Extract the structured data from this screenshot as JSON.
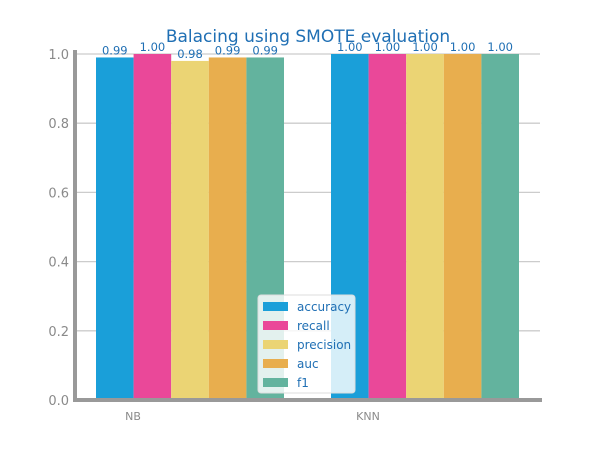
{
  "chart_data": {
    "type": "bar",
    "title": "Balacing using SMOTE evaluation",
    "xlabel": "",
    "ylabel": "",
    "categories": [
      "NB",
      "KNN"
    ],
    "series": [
      {
        "name": "accuracy",
        "color": "#1a9fd9",
        "values": [
          0.99,
          1.0
        ]
      },
      {
        "name": "recall",
        "color": "#ea4899",
        "values": [
          1.0,
          1.0
        ]
      },
      {
        "name": "precision",
        "color": "#ebd474",
        "values": [
          0.98,
          1.0
        ]
      },
      {
        "name": "auc",
        "color": "#e8ae4e",
        "values": [
          0.99,
          1.0
        ]
      },
      {
        "name": "f1",
        "color": "#63b39e",
        "values": [
          0.99,
          1.0
        ]
      }
    ],
    "value_labels": [
      [
        "0.99",
        "1.00",
        "0.98",
        "0.99",
        "0.99"
      ],
      [
        "1.00",
        "1.00",
        "1.00",
        "1.00",
        "1.00"
      ]
    ],
    "yticks": [
      "0.0",
      "0.2",
      "0.4",
      "0.6",
      "0.8",
      "1.0"
    ],
    "ylim": [
      0,
      1.0
    ],
    "grid": "horizontal",
    "legend_position": "lower-center"
  }
}
